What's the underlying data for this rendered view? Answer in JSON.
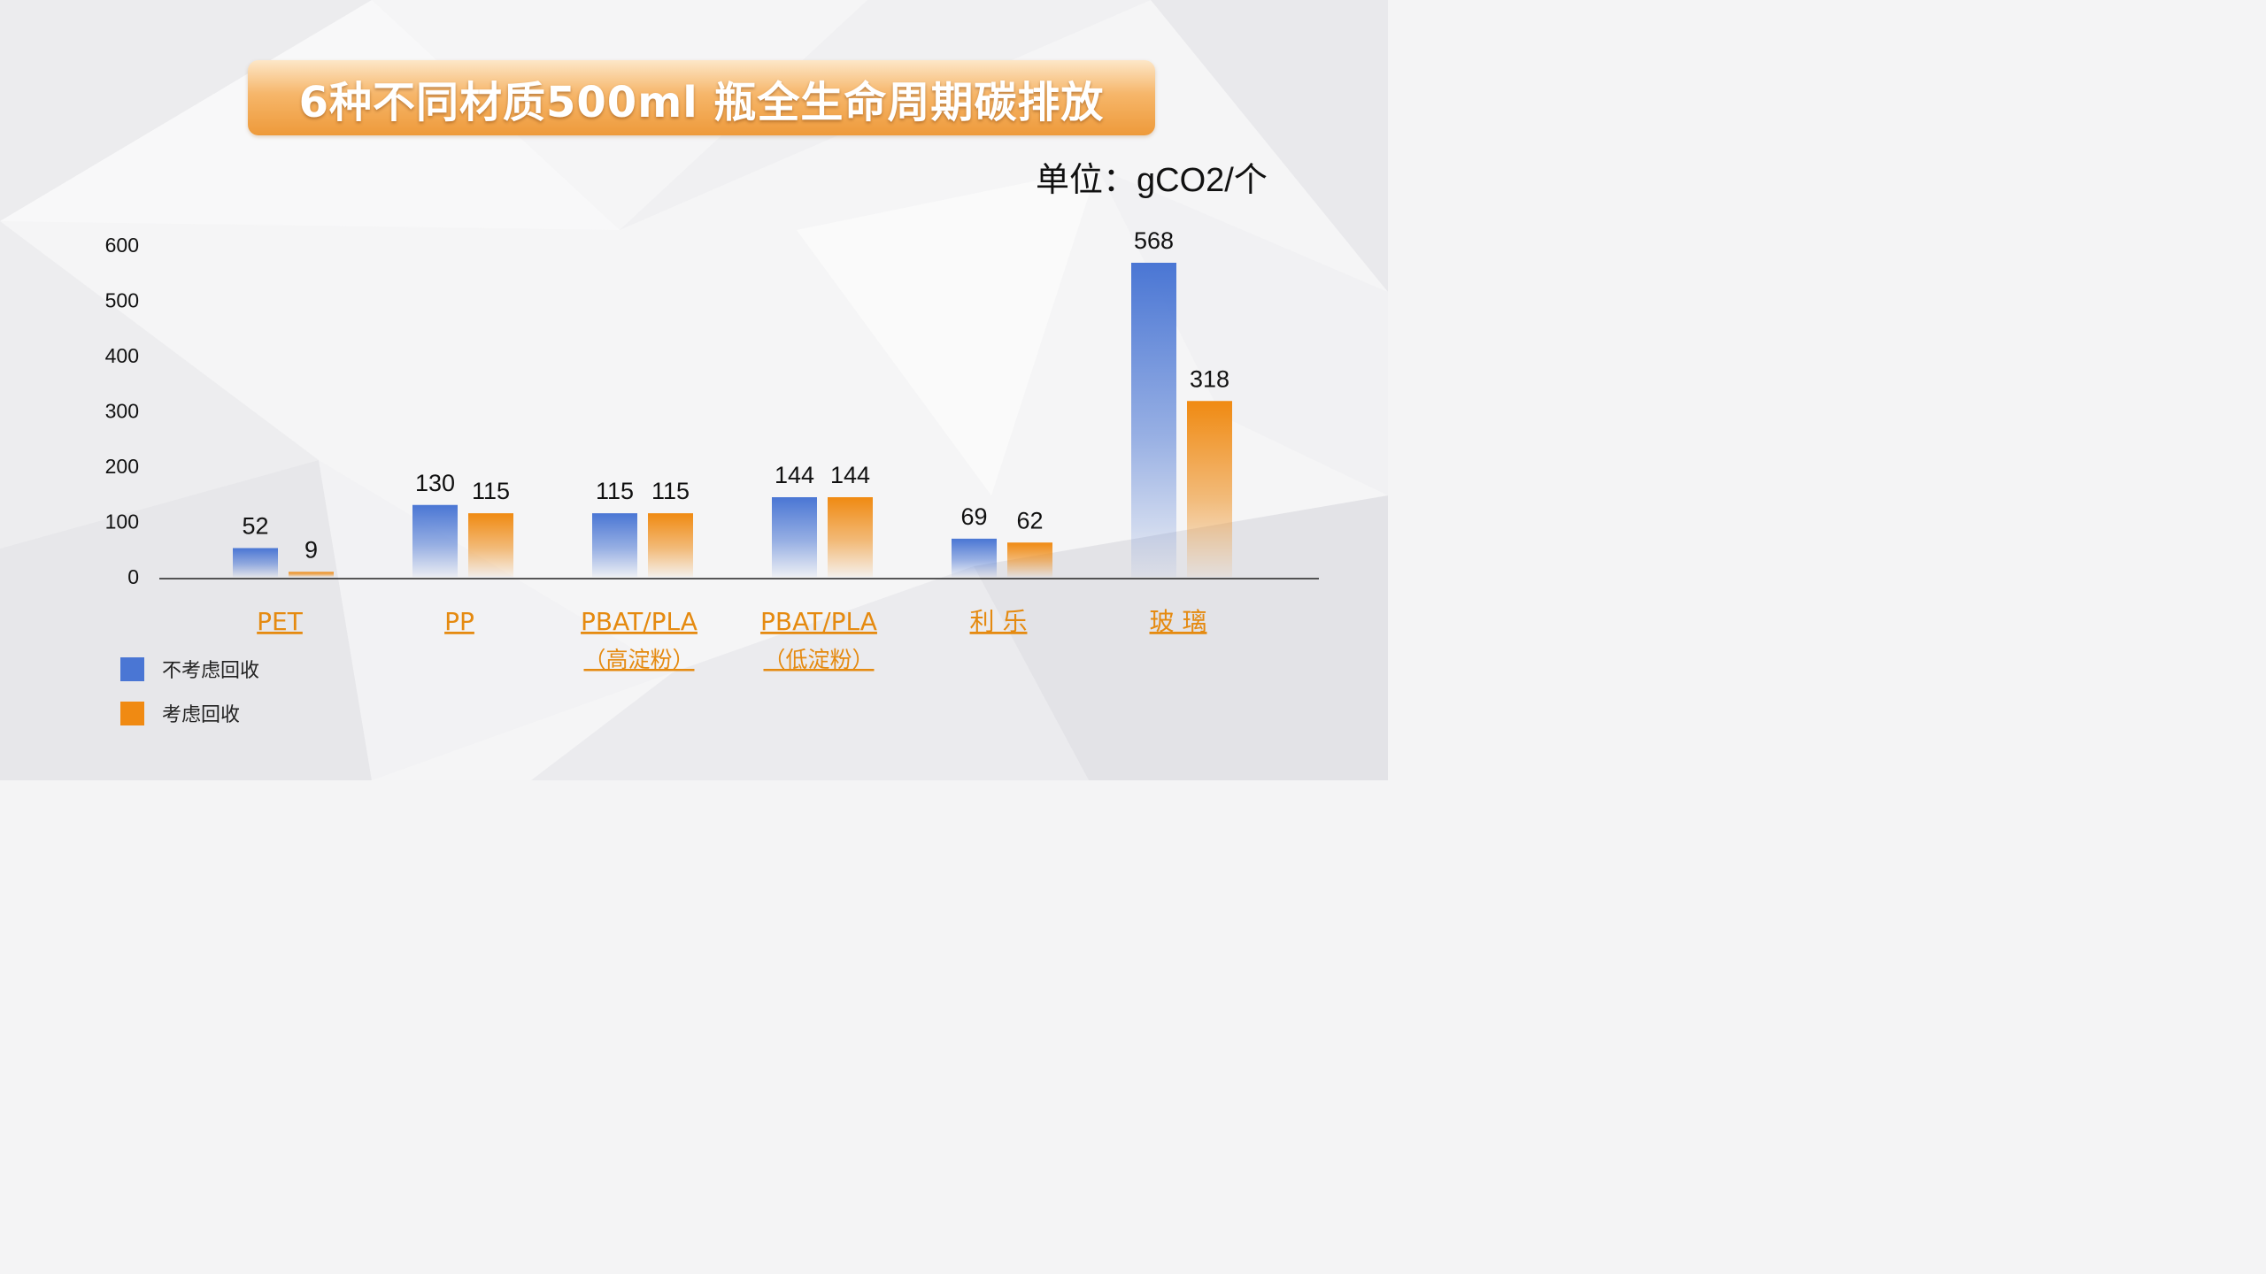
{
  "title": "6种不同材质500ml 瓶全生命周期碳排放",
  "unit_label": "单位：gCO2/个",
  "colors": {
    "blue": "#4a76d4",
    "orange": "#f08a12",
    "axis_label": "#e58a10",
    "title_bg": "#f3a750"
  },
  "legend": {
    "items": [
      {
        "label": "不考虑回收",
        "color": "#4a76d4"
      },
      {
        "label": "考虑回收",
        "color": "#f08a12"
      }
    ]
  },
  "chart_data": {
    "type": "bar",
    "categories": [
      [
        "PET"
      ],
      [
        "PP"
      ],
      [
        "PBAT/PLA",
        "（高淀粉）"
      ],
      [
        "PBAT/PLA",
        "（低淀粉）"
      ],
      [
        "利    乐"
      ],
      [
        "玻    璃"
      ]
    ],
    "series": [
      {
        "name": "不考虑回收",
        "values": [
          52,
          130,
          115,
          144,
          69,
          568
        ]
      },
      {
        "name": "考虑回收",
        "values": [
          9,
          115,
          115,
          144,
          62,
          318
        ]
      }
    ],
    "ylim": [
      0,
      600
    ],
    "yticks": [
      0,
      100,
      200,
      300,
      400,
      500,
      600
    ],
    "grid": false,
    "legend_position": "bottom-left"
  }
}
